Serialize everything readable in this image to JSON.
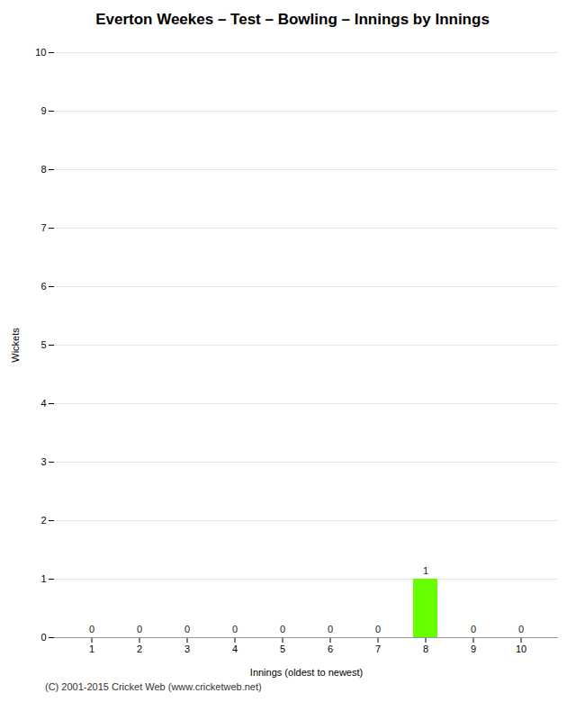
{
  "chart_data": {
    "type": "bar",
    "title": "Everton Weekes – Test – Bowling – Innings by Innings",
    "xlabel": "Innings (oldest to newest)",
    "ylabel": "Wickets",
    "categories": [
      "1",
      "2",
      "3",
      "4",
      "5",
      "6",
      "7",
      "8",
      "9",
      "10"
    ],
    "values": [
      0,
      0,
      0,
      0,
      0,
      0,
      0,
      1,
      0,
      0
    ],
    "color": "#66ff00",
    "ylim": [
      0,
      10
    ],
    "yticks": [
      0,
      1,
      2,
      3,
      4,
      5,
      6,
      7,
      8,
      9,
      10
    ],
    "grid": true,
    "data_labels": true,
    "annotations": [
      "(C) 2001-2015 Cricket Web (www.cricketweb.net)"
    ]
  }
}
